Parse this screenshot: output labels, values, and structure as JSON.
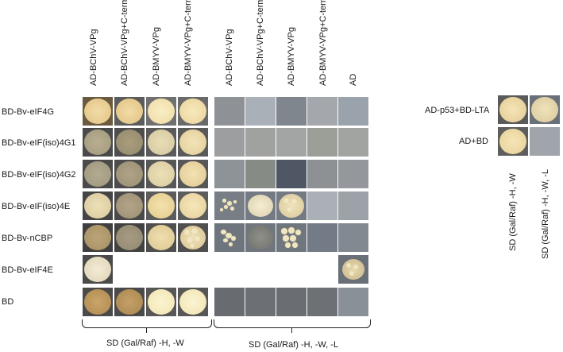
{
  "left_columns": [
    "AD-BChV-VPg",
    "AD-BChV-VPg+C-term",
    "AD-BMYV-VPg",
    "AD-BMYV-VPg+C-term"
  ],
  "middle_columns": [
    "AD-BChV-VPg",
    "AD-BChV-VPg+C-term",
    "AD-BMYV-VPg",
    "AD-BMYV-VPg+C-term",
    "AD"
  ],
  "rows": [
    "BD-Bv-eIF4G",
    "BD-Bv-eIF(iso)4G1",
    "BD-Bv-eIF(iso)4G2",
    "BD-Bv-eIF(iso)4E",
    "BD-Bv-nCBP",
    "BD-Bv-eIF4E",
    "BD"
  ],
  "left_caption": "SD (Gal/Raf) -H, -W",
  "middle_caption": "SD (Gal/Raf) -H, -W, -L",
  "controls": {
    "rows": [
      "AD-p53+BD-LTA",
      "AD+BD"
    ],
    "captions": [
      "SD (Gal/Raf) -H, -W",
      "SD (Gal/Raf) -H, -W, -L"
    ]
  },
  "colors": {
    "plate_left": "#3f3f3f",
    "plate_gray": "#9aa0a4",
    "colony_tan": "#e6cf98",
    "colony_cream": "#f3e6b8"
  }
}
